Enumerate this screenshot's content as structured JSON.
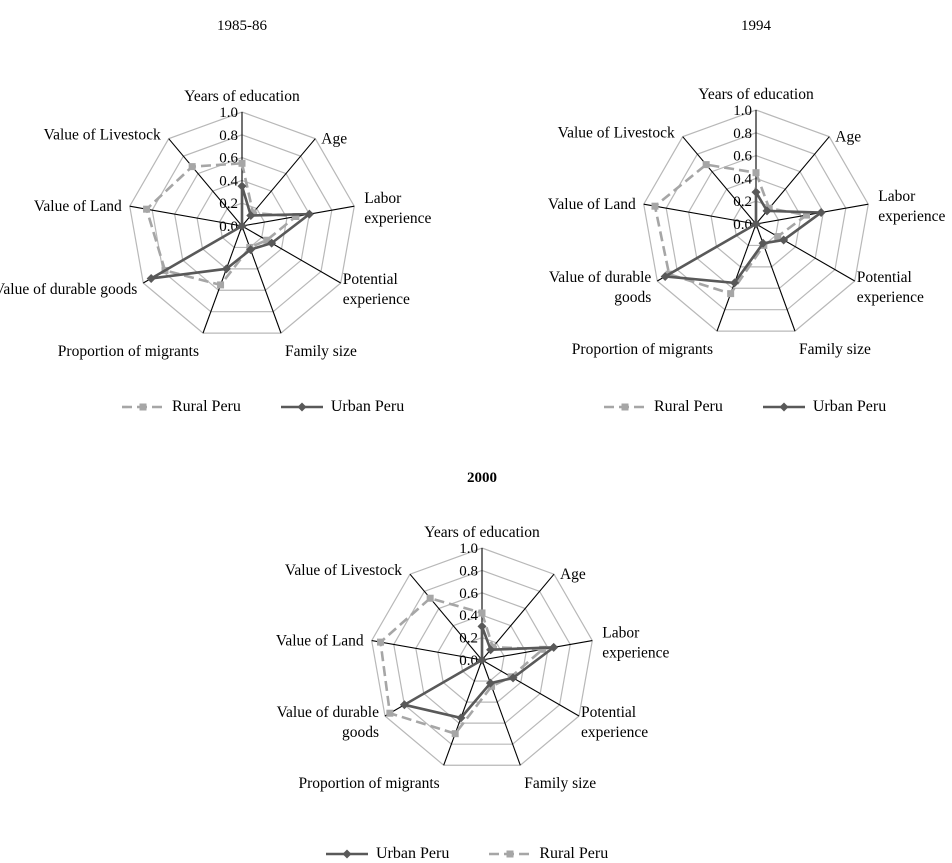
{
  "chart_data": [
    {
      "type": "radar",
      "title": "1985-86",
      "title_bold": false,
      "axes": [
        "Years of education",
        "Age",
        "Labor experience",
        "Potential experience",
        "Family size",
        "Proportion of migrants",
        "Value of durable goods",
        "Value of Land",
        "Value of Livestock"
      ],
      "axis_label_lines": [
        [
          "Years of education"
        ],
        [
          "Age"
        ],
        [
          "Labor",
          "experience"
        ],
        [
          "Potential",
          "experience"
        ],
        [
          "Family size"
        ],
        [
          "Proportion of migrants"
        ],
        [
          "Value of durable goods"
        ],
        [
          "Value of Land"
        ],
        [
          "Value of Livestock"
        ]
      ],
      "rlim": [
        0,
        1
      ],
      "ticks": [
        "0.0",
        "0.2",
        "0.4",
        "0.6",
        "0.8",
        "1.0"
      ],
      "legend_position": "bottom",
      "legend_order": [
        "Rural Peru",
        "Urban Peru"
      ],
      "series": [
        {
          "name": "Rural Peru",
          "color": "#a6a6a6",
          "dashed": true,
          "marker": "square",
          "values": [
            0.55,
            0.15,
            0.48,
            0.25,
            0.2,
            0.55,
            0.78,
            0.85,
            0.68
          ]
        },
        {
          "name": "Urban Peru",
          "color": "#595959",
          "dashed": false,
          "marker": "diamond",
          "values": [
            0.35,
            0.12,
            0.6,
            0.3,
            0.22,
            0.4,
            0.92,
            0.0,
            0.0
          ]
        }
      ]
    },
    {
      "type": "radar",
      "title": "1994",
      "title_bold": false,
      "axes": [
        "Years of education",
        "Age",
        "Labor experience",
        "Potential experience",
        "Family size",
        "Proportion of migrants",
        "Value of durable goods",
        "Value of Land",
        "Value of Livestock"
      ],
      "axis_label_lines": [
        [
          "Years of education"
        ],
        [
          "Age"
        ],
        [
          "Labor",
          "experience"
        ],
        [
          "Potential",
          "experience"
        ],
        [
          "Family size"
        ],
        [
          "Proportion of migrants"
        ],
        [
          "Value of durable",
          "goods"
        ],
        [
          "Value of Land"
        ],
        [
          "Value of Livestock"
        ]
      ],
      "rlim": [
        0,
        1
      ],
      "ticks": [
        "0.0",
        "0.2",
        "0.4",
        "0.6",
        "0.8",
        "1.0"
      ],
      "legend_position": "bottom",
      "legend_order": [
        "Rural Peru",
        "Urban Peru"
      ],
      "series": [
        {
          "name": "Rural Peru",
          "color": "#a6a6a6",
          "dashed": true,
          "marker": "square",
          "values": [
            0.45,
            0.18,
            0.45,
            0.22,
            0.2,
            0.65,
            0.88,
            0.9,
            0.68
          ]
        },
        {
          "name": "Urban Peru",
          "color": "#595959",
          "dashed": false,
          "marker": "diamond",
          "values": [
            0.28,
            0.15,
            0.58,
            0.28,
            0.18,
            0.55,
            0.92,
            0.0,
            0.0
          ]
        }
      ]
    },
    {
      "type": "radar",
      "title": "2000",
      "title_bold": true,
      "axes": [
        "Years of education",
        "Age",
        "Labor experience",
        "Potential experience",
        "Family size",
        "Proportion of migrants",
        "Value of durable goods",
        "Value of Land",
        "Value of Livestock"
      ],
      "axis_label_lines": [
        [
          "Years of education"
        ],
        [
          "Age"
        ],
        [
          "Labor",
          "experience"
        ],
        [
          "Potential",
          "experience"
        ],
        [
          "Family size"
        ],
        [
          "Proportion of migrants"
        ],
        [
          "Value of durable",
          "goods"
        ],
        [
          "Value of Land"
        ],
        [
          "Value of Livestock"
        ]
      ],
      "rlim": [
        0,
        1
      ],
      "ticks": [
        "0.0",
        "0.2",
        "0.4",
        "0.6",
        "0.8",
        "1.0"
      ],
      "legend_position": "bottom",
      "legend_order": [
        "Urban Peru",
        "Rural Peru"
      ],
      "series": [
        {
          "name": "Rural Peru",
          "color": "#a6a6a6",
          "dashed": true,
          "marker": "square",
          "values": [
            0.42,
            0.15,
            0.55,
            0.3,
            0.25,
            0.7,
            0.95,
            0.92,
            0.72
          ]
        },
        {
          "name": "Urban Peru",
          "color": "#595959",
          "dashed": false,
          "marker": "diamond",
          "values": [
            0.3,
            0.12,
            0.65,
            0.32,
            0.22,
            0.55,
            0.8,
            0.0,
            0.0
          ]
        }
      ]
    }
  ]
}
